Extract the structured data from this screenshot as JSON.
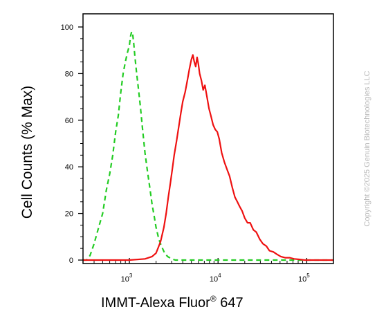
{
  "chart_data": {
    "type": "line",
    "title": "",
    "xlabel_main": "IMMT-Alexa Fluor",
    "xlabel_sup": "®",
    "xlabel_tail": " 647",
    "ylabel": "Cell Counts (% Max)",
    "x_scale": "log",
    "xlim": [
      300,
      200000
    ],
    "ylim": [
      0,
      100
    ],
    "y_ticks": [
      0,
      20,
      40,
      60,
      80,
      100
    ],
    "y_tick_labels": [
      "0",
      "20",
      "40",
      "60",
      "80",
      "100"
    ],
    "x_ticks": [
      1000,
      10000,
      100000
    ],
    "x_tick_labels": [
      {
        "base": "10",
        "exp": "3"
      },
      {
        "base": "10",
        "exp": "4"
      },
      {
        "base": "10",
        "exp": "5"
      }
    ],
    "grid": false,
    "legend": "none",
    "series": [
      {
        "color": "#22cc22",
        "style": "dashed",
        "x": [
          300,
          330,
          360,
          400,
          450,
          500,
          550,
          600,
          650,
          700,
          750,
          800,
          850,
          900,
          950,
          1000,
          1030,
          1060,
          1090,
          1120,
          1150,
          1200,
          1260,
          1330,
          1400,
          1500,
          1600,
          1700,
          1800,
          1900,
          2000,
          2150,
          2300,
          2500,
          2700,
          3000,
          3300,
          3700,
          4200,
          5000,
          6000,
          8000,
          10000,
          15000,
          30000,
          200000
        ],
        "y": [
          0,
          0,
          2,
          7,
          14,
          20,
          30,
          37,
          45,
          55,
          62,
          72,
          80,
          85,
          89,
          92,
          96,
          98,
          97,
          93,
          88,
          81,
          74,
          66,
          57,
          46,
          38,
          31,
          24,
          19,
          14,
          9,
          6,
          3,
          1.5,
          0.5,
          0,
          0,
          0,
          0,
          0,
          0,
          0,
          0,
          0,
          0
        ]
      },
      {
        "color": "#ee1111",
        "style": "solid",
        "x": [
          300,
          1000,
          1500,
          1800,
          2000,
          2100,
          2250,
          2450,
          2600,
          2750,
          2900,
          3050,
          3200,
          3400,
          3600,
          3800,
          4000,
          4250,
          4500,
          4750,
          5000,
          5200,
          5400,
          5600,
          5800,
          6000,
          6200,
          6500,
          6800,
          7100,
          7500,
          7900,
          8300,
          8800,
          9300,
          9800,
          10300,
          11000,
          11800,
          12600,
          13500,
          14500,
          15500,
          16500,
          17500,
          18700,
          20000,
          21500,
          23000,
          25000,
          27000,
          29500,
          32000,
          35000,
          38000,
          42000,
          46000,
          51000,
          57000,
          64000,
          72000,
          82000,
          95000,
          120000,
          200000
        ],
        "y": [
          0,
          0,
          0.5,
          1.5,
          3,
          5,
          8,
          14,
          20,
          27,
          33,
          39,
          45,
          51,
          57,
          63,
          68,
          72,
          77,
          82,
          86,
          88,
          85,
          83,
          87,
          84,
          80,
          77,
          73,
          75,
          70,
          65,
          62,
          58,
          56,
          55,
          52,
          46,
          42,
          39,
          36,
          31,
          27,
          25,
          23,
          21,
          18,
          16,
          16,
          13,
          12,
          9,
          7,
          6,
          4,
          3.5,
          2.5,
          1.5,
          1,
          1,
          0.5,
          0.3,
          0,
          0,
          0
        ]
      }
    ]
  },
  "watermark": "Copyright ©2025 Genuin Biotechnologies LLC"
}
